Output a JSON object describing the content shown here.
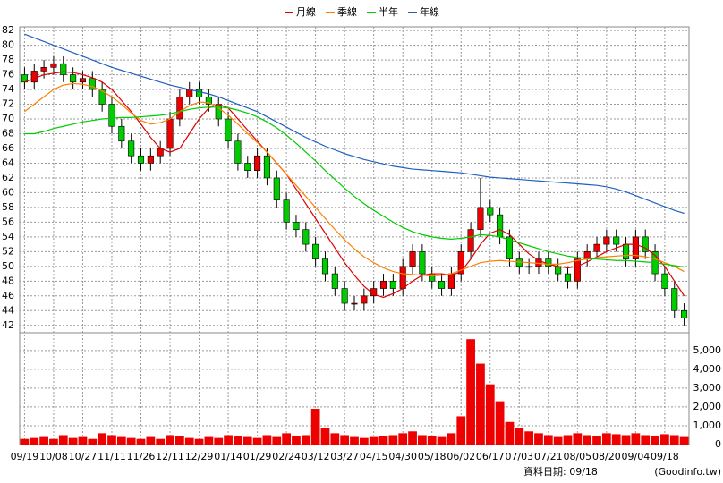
{
  "chart_data": {
    "type": "candlestick",
    "categories": [
      "09/19",
      null,
      null,
      "10/08",
      null,
      null,
      "10/27",
      null,
      null,
      "11/11",
      null,
      null,
      "11/26",
      null,
      null,
      "12/11",
      null,
      null,
      "12/29",
      null,
      null,
      "01/14",
      null,
      null,
      "01/29",
      null,
      null,
      "02/24",
      null,
      null,
      "03/12",
      null,
      null,
      "03/27",
      null,
      null,
      "04/15",
      null,
      null,
      "04/30",
      null,
      null,
      "05/18",
      null,
      null,
      "06/02",
      null,
      null,
      "06/17",
      null,
      null,
      "07/03",
      null,
      null,
      "07/21",
      null,
      null,
      "08/05",
      null,
      null,
      "08/20",
      null,
      null,
      "09/04",
      null,
      null,
      "09/18",
      null,
      null
    ],
    "open": [
      76,
      75,
      76.5,
      77,
      77.5,
      76,
      75,
      75.5,
      74,
      72,
      69,
      67,
      65,
      64,
      65,
      66,
      70,
      73,
      74,
      73,
      72,
      70,
      67,
      64,
      63,
      65,
      62,
      59,
      56,
      55,
      53,
      51,
      49,
      47,
      45,
      45,
      46,
      47,
      48,
      47,
      50,
      52,
      49,
      48,
      47,
      49,
      52,
      55,
      58,
      57,
      54,
      51,
      50,
      50,
      51,
      50,
      49,
      48,
      51,
      52,
      53,
      54,
      53,
      51,
      54,
      52,
      49,
      47,
      44
    ],
    "high": [
      77,
      77.5,
      78,
      78.5,
      78.5,
      77,
      76.5,
      76.5,
      75,
      73,
      70,
      68,
      66,
      66,
      67,
      71,
      74,
      75,
      75,
      74,
      73,
      71,
      68,
      65,
      66,
      66,
      63,
      60,
      57,
      56,
      54,
      52,
      50,
      48,
      46,
      47,
      48,
      49,
      49,
      51,
      53,
      53,
      50,
      49,
      50,
      53,
      56,
      62,
      59,
      58,
      55,
      52,
      51,
      52,
      52,
      51,
      50,
      52,
      53,
      54,
      55,
      55,
      54,
      55,
      55,
      53,
      50,
      48,
      45
    ],
    "low": [
      74,
      74,
      75.5,
      76,
      75,
      74,
      74,
      73,
      71,
      68,
      66,
      64,
      63,
      63,
      64,
      65,
      69,
      72,
      72,
      71,
      69,
      66,
      63,
      62,
      62,
      61,
      58,
      55,
      54,
      52,
      50,
      48,
      46,
      44,
      44,
      44,
      45,
      46,
      46,
      46,
      49,
      48,
      47,
      46,
      46,
      48,
      51,
      54,
      56,
      53,
      50,
      49,
      49,
      49,
      49,
      48,
      47,
      47,
      50,
      51,
      52,
      52,
      50,
      50,
      51,
      48,
      46,
      43,
      42
    ],
    "close": [
      75,
      76.5,
      77,
      77.5,
      76,
      75,
      75.5,
      74,
      72,
      69,
      67,
      65,
      64,
      65,
      66,
      70,
      73,
      74,
      73,
      72,
      70,
      67,
      64,
      63,
      65,
      62,
      59,
      56,
      55,
      53,
      51,
      49,
      47,
      45,
      45,
      46,
      47,
      48,
      47,
      50,
      52,
      49,
      48,
      47,
      49,
      52,
      55,
      58,
      57,
      54,
      51,
      50,
      50,
      51,
      50,
      49,
      48,
      51,
      52,
      53,
      54,
      53,
      51,
      54,
      52,
      49,
      47,
      44,
      43
    ],
    "up_color": "#ee0000",
    "down_color": "#00cc00",
    "series": [
      {
        "name": "月線",
        "color": "#dd0000",
        "values": [
          75,
          75.5,
          76,
          76.2,
          76.4,
          76.3,
          76,
          75.6,
          75,
          74,
          72.5,
          71,
          69.3,
          67.5,
          66,
          65.5,
          66,
          68,
          70,
          71.5,
          72,
          71.5,
          70,
          68.5,
          67,
          65.5,
          64,
          62.5,
          60.5,
          58.5,
          56.5,
          54.5,
          52.5,
          50.5,
          48.8,
          47.3,
          46.2,
          45.8,
          46.3,
          47,
          48,
          48.8,
          49,
          49,
          48.8,
          49.3,
          51,
          53,
          54.5,
          55,
          54.3,
          53,
          51.7,
          50.8,
          50.3,
          50,
          49.8,
          50,
          50.6,
          51.3,
          52,
          52.5,
          53,
          53,
          52.5,
          51.5,
          50,
          48,
          46
        ]
      },
      {
        "name": "季線",
        "color": "#ff7f00",
        "values": [
          71,
          72,
          73,
          74,
          74.6,
          74.8,
          74.7,
          74.4,
          73.8,
          73,
          72,
          70.8,
          69.8,
          69.3,
          69.5,
          70,
          71,
          71.8,
          72.3,
          72.2,
          71.5,
          70.5,
          69.3,
          68,
          66.8,
          65.5,
          64,
          62.5,
          61,
          59.5,
          58,
          56.5,
          55,
          53.6,
          52.4,
          51.3,
          50.5,
          49.8,
          49.3,
          49,
          48.9,
          48.8,
          48.7,
          48.8,
          49,
          49.5,
          50,
          50.5,
          50.7,
          50.8,
          50.7,
          50.6,
          50.5,
          50.4,
          50.3,
          50.3,
          50.5,
          50.8,
          51,
          51.2,
          51.3,
          51.4,
          51.5,
          51.5,
          51.3,
          51,
          50.5,
          50,
          49.3
        ]
      },
      {
        "name": "半年",
        "color": "#00cc00",
        "values": [
          68,
          68,
          68.3,
          68.7,
          69,
          69.3,
          69.6,
          69.8,
          70,
          70.1,
          70.2,
          70.2,
          70.3,
          70.4,
          70.5,
          70.7,
          71,
          71.3,
          71.5,
          71.6,
          71.6,
          71.5,
          71.2,
          70.8,
          70.3,
          69.6,
          68.8,
          67.8,
          66.7,
          65.5,
          64.3,
          63,
          61.8,
          60.6,
          59.5,
          58.5,
          57.6,
          56.8,
          56,
          55.3,
          54.7,
          54.3,
          54,
          53.8,
          53.7,
          53.8,
          54,
          54.3,
          54.2,
          54,
          53.6,
          53.2,
          52.8,
          52.4,
          52,
          51.7,
          51.4,
          51.2,
          51.1,
          51,
          50.9,
          50.8,
          50.8,
          50.7,
          50.6,
          50.5,
          50.3,
          50.1,
          49.9
        ]
      },
      {
        "name": "年線",
        "color": "#2060c0",
        "values": [
          81.5,
          81,
          80.5,
          80,
          79.5,
          79,
          78.5,
          78,
          77.5,
          77,
          76.6,
          76.2,
          75.8,
          75.4,
          75,
          74.6,
          74.3,
          74,
          73.7,
          73.4,
          73,
          72.5,
          72,
          71.5,
          71,
          70.3,
          69.6,
          68.9,
          68.2,
          67.5,
          66.9,
          66.3,
          65.8,
          65.3,
          64.9,
          64.5,
          64.2,
          63.9,
          63.6,
          63.4,
          63.2,
          63.1,
          63,
          62.9,
          62.8,
          62.7,
          62.5,
          62.3,
          62.1,
          62,
          61.9,
          61.8,
          61.7,
          61.6,
          61.5,
          61.4,
          61.3,
          61.2,
          61.1,
          61,
          60.8,
          60.5,
          60.1,
          59.6,
          59.1,
          58.6,
          58.1,
          57.6,
          57.2
        ]
      }
    ],
    "ylim": [
      41,
      82.5
    ],
    "yticks": [
      42,
      44,
      46,
      48,
      50,
      52,
      54,
      56,
      58,
      60,
      62,
      64,
      66,
      68,
      70,
      72,
      74,
      76,
      78,
      80,
      82
    ],
    "volume": [
      300,
      350,
      400,
      300,
      500,
      350,
      400,
      300,
      600,
      500,
      400,
      350,
      300,
      400,
      300,
      500,
      450,
      350,
      300,
      400,
      350,
      500,
      450,
      400,
      350,
      500,
      400,
      600,
      450,
      500,
      1900,
      900,
      600,
      500,
      400,
      350,
      400,
      450,
      500,
      600,
      700,
      500,
      450,
      400,
      600,
      1500,
      5600,
      4300,
      3200,
      2300,
      1200,
      900,
      700,
      600,
      500,
      400,
      500,
      600,
      500,
      450,
      600,
      550,
      500,
      600,
      500,
      450,
      550,
      500,
      400
    ],
    "volume_color": "#ee0000",
    "y2lim": [
      0,
      5800
    ],
    "y2ticks": [
      0,
      {
        "value": 1000,
        "label": "1,000"
      },
      {
        "value": 2000,
        "label": "2,000"
      },
      {
        "value": 3000,
        "label": "3,000"
      },
      {
        "value": 4000,
        "label": "4,000"
      },
      {
        "value": 5000,
        "label": "5,000"
      }
    ],
    "grid": true,
    "footer_date": "資料日期: 09/18",
    "footer_source": "(Goodinfo.tw)"
  }
}
